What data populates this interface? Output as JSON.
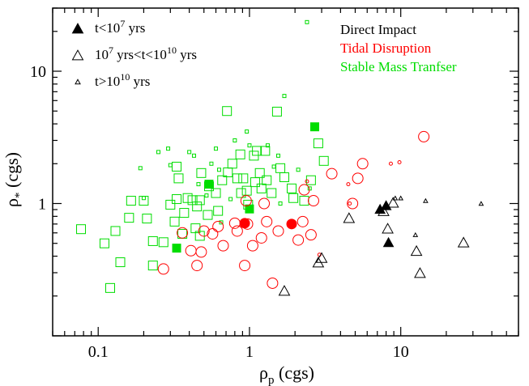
{
  "chart_data": {
    "type": "scatter",
    "xscale": "log",
    "yscale": "log",
    "xlim": [
      0.05,
      60
    ],
    "ylim": [
      0.1,
      30
    ],
    "xlabel": "ρp (cgs)",
    "ylabel": "ρ* (cgs)",
    "xlabel_main": "ρ",
    "xlabel_sub": "p",
    "xlabel_unit": " (cgs)",
    "ylabel_main": "ρ",
    "ylabel_sub": "*",
    "ylabel_unit": " (cgs)",
    "x_ticks": [
      {
        "value": 0.1,
        "label": "0.1"
      },
      {
        "value": 1,
        "label": "1"
      },
      {
        "value": 10,
        "label": "10"
      }
    ],
    "y_ticks": [
      {
        "value": 1,
        "label": "1"
      },
      {
        "value": 10,
        "label": "10"
      }
    ],
    "legend_placement": "top-left",
    "legend": [
      {
        "symbol": "triangle",
        "size": "large",
        "filled": true,
        "label": "t<10^7 yrs",
        "parts": [
          "t<10",
          "7",
          " yrs"
        ]
      },
      {
        "symbol": "triangle",
        "size": "large",
        "filled": false,
        "label": "10^7 yrs<t<10^10 yrs",
        "parts": [
          "10",
          "7",
          " yrs<t<10",
          "10",
          " yrs"
        ]
      },
      {
        "symbol": "triangle",
        "size": "small",
        "filled": false,
        "label": "t>10^10 yrs",
        "parts": [
          "t>10",
          "10",
          " yrs"
        ]
      }
    ],
    "channels": [
      {
        "name": "Direct Impact",
        "color": "#000000",
        "marker": "triangle"
      },
      {
        "name": "Tidal Disruption",
        "color": "#ff0000",
        "marker": "circle"
      },
      {
        "name": "Stable Mass Tranfser",
        "color": "#00dd00",
        "marker": "square"
      }
    ],
    "series": [
      {
        "channel": "Stable Mass Tranfser",
        "color": "#00dd00",
        "marker": "square",
        "points": [
          {
            "x": 0.077,
            "y": 0.64,
            "c": "m"
          },
          {
            "x": 0.11,
            "y": 0.5,
            "c": "m"
          },
          {
            "x": 0.13,
            "y": 0.62,
            "c": "m"
          },
          {
            "x": 0.14,
            "y": 0.36,
            "c": "m"
          },
          {
            "x": 0.12,
            "y": 0.23,
            "c": "m"
          },
          {
            "x": 0.16,
            "y": 0.78,
            "c": "m"
          },
          {
            "x": 0.165,
            "y": 1.05,
            "c": "m"
          },
          {
            "x": 0.2,
            "y": 1.05,
            "c": "m"
          },
          {
            "x": 0.21,
            "y": 0.77,
            "c": "m"
          },
          {
            "x": 0.23,
            "y": 0.34,
            "c": "m"
          },
          {
            "x": 0.23,
            "y": 0.52,
            "c": "m"
          },
          {
            "x": 0.27,
            "y": 0.51,
            "c": "m"
          },
          {
            "x": 0.33,
            "y": 1.9,
            "c": "m"
          },
          {
            "x": 0.34,
            "y": 1.55,
            "c": "m"
          },
          {
            "x": 0.33,
            "y": 1.08,
            "c": "m"
          },
          {
            "x": 0.3,
            "y": 0.98,
            "c": "m"
          },
          {
            "x": 0.37,
            "y": 0.85,
            "c": "m"
          },
          {
            "x": 0.32,
            "y": 0.73,
            "c": "m"
          },
          {
            "x": 0.36,
            "y": 0.59,
            "c": "m"
          },
          {
            "x": 0.39,
            "y": 1.1,
            "c": "m"
          },
          {
            "x": 0.42,
            "y": 1.06,
            "c": "m"
          },
          {
            "x": 0.45,
            "y": 0.95,
            "c": "m"
          },
          {
            "x": 0.44,
            "y": 0.65,
            "c": "m"
          },
          {
            "x": 0.47,
            "y": 0.57,
            "c": "m"
          },
          {
            "x": 0.48,
            "y": 1.7,
            "c": "m"
          },
          {
            "x": 0.47,
            "y": 1.06,
            "c": "m"
          },
          {
            "x": 0.53,
            "y": 0.82,
            "c": "m"
          },
          {
            "x": 0.54,
            "y": 1.35,
            "c": "m"
          },
          {
            "x": 0.6,
            "y": 1.2,
            "c": "m"
          },
          {
            "x": 0.62,
            "y": 0.88,
            "c": "m"
          },
          {
            "x": 0.66,
            "y": 1.5,
            "c": "m"
          },
          {
            "x": 0.71,
            "y": 5.0,
            "c": "m"
          },
          {
            "x": 0.72,
            "y": 1.72,
            "c": "m"
          },
          {
            "x": 0.77,
            "y": 2.0,
            "c": "m"
          },
          {
            "x": 0.83,
            "y": 1.55,
            "c": "m"
          },
          {
            "x": 0.87,
            "y": 2.35,
            "c": "m"
          },
          {
            "x": 0.88,
            "y": 1.2,
            "c": "m"
          },
          {
            "x": 0.91,
            "y": 1.55,
            "c": "m"
          },
          {
            "x": 0.96,
            "y": 1.25,
            "c": "m"
          },
          {
            "x": 0.98,
            "y": 0.98,
            "c": "m"
          },
          {
            "x": 1.07,
            "y": 2.3,
            "c": "m"
          },
          {
            "x": 1.09,
            "y": 1.45,
            "c": "m"
          },
          {
            "x": 1.12,
            "y": 2.5,
            "c": "m"
          },
          {
            "x": 1.17,
            "y": 1.7,
            "c": "m"
          },
          {
            "x": 1.2,
            "y": 1.3,
            "c": "m"
          },
          {
            "x": 1.27,
            "y": 2.5,
            "c": "m"
          },
          {
            "x": 1.3,
            "y": 1.5,
            "c": "m"
          },
          {
            "x": 1.4,
            "y": 1.2,
            "c": "m"
          },
          {
            "x": 1.52,
            "y": 4.95,
            "c": "m"
          },
          {
            "x": 1.6,
            "y": 1.85,
            "c": "m"
          },
          {
            "x": 1.7,
            "y": 1.58,
            "c": "m"
          },
          {
            "x": 1.9,
            "y": 1.3,
            "c": "m"
          },
          {
            "x": 1.95,
            "y": 1.1,
            "c": "m"
          },
          {
            "x": 2.3,
            "y": 1.05,
            "c": "m"
          },
          {
            "x": 2.55,
            "y": 1.5,
            "c": "m"
          },
          {
            "x": 2.85,
            "y": 2.85,
            "c": "m"
          },
          {
            "x": 3.1,
            "y": 2.1,
            "c": "m"
          },
          {
            "x": 0.19,
            "y": 1.85,
            "c": "s"
          },
          {
            "x": 0.2,
            "y": 1.1,
            "c": "s"
          },
          {
            "x": 0.25,
            "y": 2.45,
            "c": "s"
          },
          {
            "x": 0.29,
            "y": 2.6,
            "c": "s"
          },
          {
            "x": 0.3,
            "y": 1.95,
            "c": "s"
          },
          {
            "x": 0.4,
            "y": 2.45,
            "c": "s"
          },
          {
            "x": 0.43,
            "y": 2.3,
            "c": "s"
          },
          {
            "x": 0.46,
            "y": 1.4,
            "c": "s"
          },
          {
            "x": 0.52,
            "y": 1.15,
            "c": "s"
          },
          {
            "x": 0.56,
            "y": 2.0,
            "c": "s"
          },
          {
            "x": 0.6,
            "y": 2.6,
            "c": "s"
          },
          {
            "x": 0.63,
            "y": 1.8,
            "c": "s"
          },
          {
            "x": 0.65,
            "y": 0.72,
            "c": "s"
          },
          {
            "x": 0.75,
            "y": 1.08,
            "c": "s"
          },
          {
            "x": 0.8,
            "y": 3.0,
            "c": "s"
          },
          {
            "x": 0.96,
            "y": 3.5,
            "c": "s"
          },
          {
            "x": 1.0,
            "y": 2.75,
            "c": "s"
          },
          {
            "x": 1.32,
            "y": 2.75,
            "c": "s"
          },
          {
            "x": 1.45,
            "y": 1.9,
            "c": "s"
          },
          {
            "x": 1.55,
            "y": 2.3,
            "c": "s"
          },
          {
            "x": 1.6,
            "y": 1.0,
            "c": "s"
          },
          {
            "x": 1.7,
            "y": 6.5,
            "c": "s"
          },
          {
            "x": 2.1,
            "y": 1.8,
            "c": "s"
          },
          {
            "x": 2.5,
            "y": 1.3,
            "c": "s"
          },
          {
            "x": 2.4,
            "y": 23.5,
            "c": "s"
          },
          {
            "x": 0.33,
            "y": 0.46,
            "c": "f"
          },
          {
            "x": 0.54,
            "y": 1.4,
            "c": "f"
          },
          {
            "x": 1.0,
            "y": 0.91,
            "c": "f"
          },
          {
            "x": 2.7,
            "y": 3.8,
            "c": "f"
          }
        ]
      },
      {
        "channel": "Tidal Disruption",
        "color": "#ff0000",
        "marker": "circle",
        "points": [
          {
            "x": 0.27,
            "y": 0.32,
            "c": "m"
          },
          {
            "x": 0.36,
            "y": 0.6,
            "c": "m"
          },
          {
            "x": 0.41,
            "y": 0.44,
            "c": "m"
          },
          {
            "x": 0.45,
            "y": 0.34,
            "c": "m"
          },
          {
            "x": 0.48,
            "y": 0.43,
            "c": "m"
          },
          {
            "x": 0.5,
            "y": 0.62,
            "c": "m"
          },
          {
            "x": 0.57,
            "y": 0.59,
            "c": "m"
          },
          {
            "x": 0.62,
            "y": 0.67,
            "c": "m"
          },
          {
            "x": 0.67,
            "y": 0.48,
            "c": "m"
          },
          {
            "x": 0.8,
            "y": 0.71,
            "c": "m"
          },
          {
            "x": 0.83,
            "y": 0.62,
            "c": "m"
          },
          {
            "x": 0.93,
            "y": 0.34,
            "c": "m"
          },
          {
            "x": 0.95,
            "y": 1.05,
            "c": "m"
          },
          {
            "x": 0.97,
            "y": 0.7,
            "c": "m"
          },
          {
            "x": 1.05,
            "y": 0.48,
            "c": "m"
          },
          {
            "x": 1.2,
            "y": 0.55,
            "c": "m"
          },
          {
            "x": 1.25,
            "y": 1.0,
            "c": "m"
          },
          {
            "x": 1.3,
            "y": 0.73,
            "c": "m"
          },
          {
            "x": 1.42,
            "y": 0.25,
            "c": "m"
          },
          {
            "x": 1.55,
            "y": 0.62,
            "c": "m"
          },
          {
            "x": 2.1,
            "y": 0.53,
            "c": "m"
          },
          {
            "x": 2.25,
            "y": 0.73,
            "c": "m"
          },
          {
            "x": 2.3,
            "y": 1.27,
            "c": "m"
          },
          {
            "x": 2.55,
            "y": 0.58,
            "c": "m"
          },
          {
            "x": 2.65,
            "y": 1.05,
            "c": "m"
          },
          {
            "x": 3.5,
            "y": 1.68,
            "c": "m"
          },
          {
            "x": 4.8,
            "y": 1.0,
            "c": "m"
          },
          {
            "x": 5.2,
            "y": 1.55,
            "c": "m"
          },
          {
            "x": 5.6,
            "y": 2.0,
            "c": "m"
          },
          {
            "x": 14.2,
            "y": 3.2,
            "c": "m"
          },
          {
            "x": 2.4,
            "y": 1.47,
            "c": "s"
          },
          {
            "x": 2.9,
            "y": 0.41,
            "c": "s"
          },
          {
            "x": 4.6,
            "y": 1.0,
            "c": "s"
          },
          {
            "x": 4.5,
            "y": 1.4,
            "c": "s"
          },
          {
            "x": 8.6,
            "y": 2.0,
            "c": "s"
          },
          {
            "x": 9.8,
            "y": 2.05,
            "c": "s"
          },
          {
            "x": 0.93,
            "y": 0.71,
            "c": "f"
          },
          {
            "x": 1.9,
            "y": 0.7,
            "c": "f"
          }
        ]
      },
      {
        "channel": "Direct Impact",
        "color": "#000000",
        "marker": "triangle",
        "points": [
          {
            "x": 1.7,
            "y": 0.22,
            "c": "m"
          },
          {
            "x": 2.85,
            "y": 0.36,
            "c": "m"
          },
          {
            "x": 3.0,
            "y": 0.39,
            "c": "m"
          },
          {
            "x": 4.55,
            "y": 0.78,
            "c": "m"
          },
          {
            "x": 7.7,
            "y": 0.88,
            "c": "m"
          },
          {
            "x": 8.2,
            "y": 0.65,
            "c": "m"
          },
          {
            "x": 8.9,
            "y": 1.02,
            "c": "m"
          },
          {
            "x": 12.7,
            "y": 0.44,
            "c": "m"
          },
          {
            "x": 13.4,
            "y": 0.3,
            "c": "m"
          },
          {
            "x": 26.0,
            "y": 0.51,
            "c": "m"
          },
          {
            "x": 9.2,
            "y": 1.1,
            "c": "s"
          },
          {
            "x": 10.0,
            "y": 1.1,
            "c": "s"
          },
          {
            "x": 12.5,
            "y": 0.58,
            "c": "s"
          },
          {
            "x": 14.6,
            "y": 1.05,
            "c": "s"
          },
          {
            "x": 34.0,
            "y": 1.0,
            "c": "s"
          },
          {
            "x": 7.3,
            "y": 0.91,
            "c": "f"
          },
          {
            "x": 8.0,
            "y": 0.97,
            "c": "f"
          },
          {
            "x": 8.3,
            "y": 0.51,
            "c": "f"
          }
        ]
      }
    ]
  }
}
